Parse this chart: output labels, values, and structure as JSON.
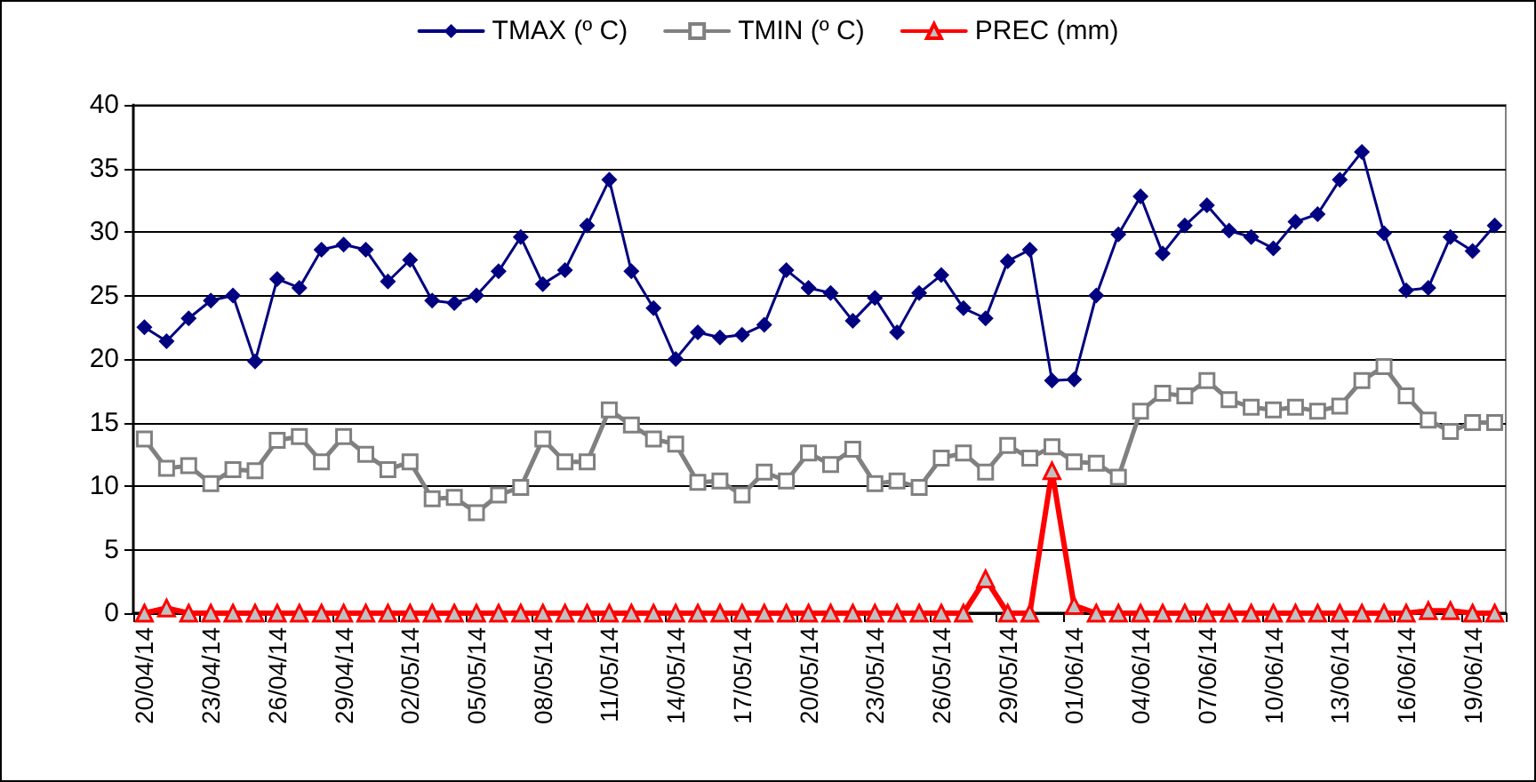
{
  "chart_data": {
    "type": "line",
    "categories": [
      "20/04/14",
      null,
      null,
      "23/04/14",
      null,
      null,
      "26/04/14",
      null,
      null,
      "29/04/14",
      null,
      null,
      "02/05/14",
      null,
      null,
      "05/05/14",
      null,
      null,
      "08/05/14",
      null,
      null,
      "11/05/14",
      null,
      null,
      "14/05/14",
      null,
      null,
      "17/05/14",
      null,
      null,
      "20/05/14",
      null,
      null,
      "23/05/14",
      null,
      null,
      "26/05/14",
      null,
      null,
      "29/05/14",
      null,
      null,
      "01/06/14",
      null,
      null,
      "04/06/14",
      null,
      null,
      "07/06/14",
      null,
      null,
      "10/06/14",
      null,
      null,
      "13/06/14",
      null,
      null,
      "16/06/14",
      null,
      null,
      "19/06/14",
      null
    ],
    "series": [
      {
        "name": "TMAX (º C)",
        "color": "#000080",
        "marker": "diamond",
        "values": [
          22.5,
          21.4,
          23.2,
          24.6,
          25.0,
          19.8,
          26.3,
          25.6,
          28.6,
          29.0,
          28.6,
          26.1,
          27.8,
          24.6,
          24.4,
          25.0,
          26.9,
          29.6,
          25.9,
          27.0,
          30.5,
          34.1,
          26.9,
          24.0,
          20.0,
          22.1,
          21.7,
          21.9,
          22.7,
          27.0,
          25.6,
          25.2,
          23.0,
          24.8,
          22.1,
          25.2,
          26.6,
          24.0,
          23.2,
          27.7,
          28.6,
          18.3,
          18.4,
          25.0,
          29.8,
          32.8,
          28.3,
          30.5,
          32.1,
          30.1,
          29.6,
          28.7,
          30.8,
          31.4,
          34.1,
          36.3,
          29.9,
          25.4,
          25.6,
          29.6,
          28.5,
          30.5
        ]
      },
      {
        "name": "TMIN (º C)",
        "color": "#808080",
        "marker": "square",
        "values": [
          13.7,
          11.4,
          11.6,
          10.2,
          11.3,
          11.2,
          13.6,
          13.9,
          11.9,
          13.9,
          12.5,
          11.3,
          11.9,
          9.0,
          9.1,
          7.9,
          9.3,
          9.9,
          13.7,
          11.9,
          11.9,
          16.0,
          14.8,
          13.7,
          13.3,
          10.3,
          10.4,
          9.3,
          11.1,
          10.4,
          12.6,
          11.7,
          12.9,
          10.2,
          10.4,
          9.9,
          12.2,
          12.6,
          11.1,
          13.2,
          12.2,
          13.1,
          11.9,
          11.8,
          10.7,
          15.9,
          17.3,
          17.1,
          18.3,
          16.8,
          16.2,
          16.0,
          16.2,
          15.9,
          16.3,
          18.3,
          19.4,
          17.1,
          15.2,
          14.3,
          15.0,
          15.0
        ]
      },
      {
        "name": "PREC (mm)",
        "color": "#ff0000",
        "marker": "triangle",
        "values": [
          0,
          0.4,
          0,
          0,
          0,
          0,
          0,
          0,
          0,
          0,
          0,
          0,
          0,
          0,
          0,
          0,
          0,
          0,
          0,
          0,
          0,
          0,
          0,
          0,
          0,
          0,
          0,
          0,
          0,
          0,
          0,
          0,
          0,
          0,
          0,
          0,
          0,
          0,
          2.7,
          0,
          0,
          11.2,
          0.6,
          0,
          0,
          0,
          0,
          0,
          0,
          0,
          0,
          0,
          0,
          0,
          0,
          0,
          0,
          0,
          0.2,
          0.2,
          0,
          0
        ]
      }
    ],
    "ylim": [
      0,
      40
    ],
    "yticks": [
      0,
      5,
      10,
      15,
      20,
      25,
      30,
      35,
      40
    ],
    "grid": "y",
    "legend": "top"
  }
}
